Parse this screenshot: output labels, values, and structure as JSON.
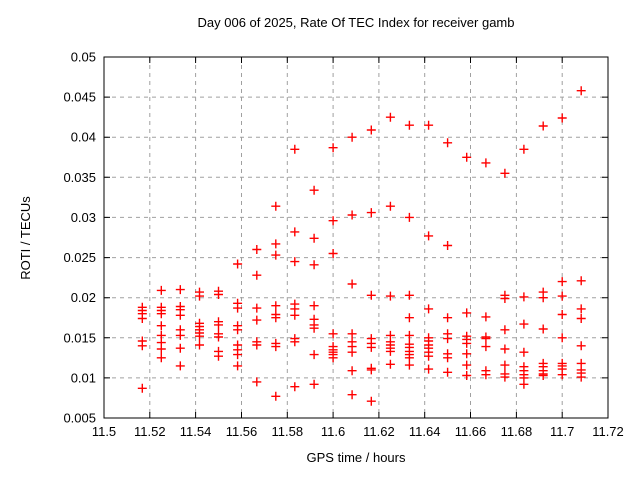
{
  "chart_data": {
    "type": "scatter",
    "title": "Day 006 of 2025, Rate Of TEC Index for receiver gamb",
    "xlabel": "GPS time / hours",
    "ylabel": "ROTI / TECUs",
    "xlim": [
      11.5,
      11.72
    ],
    "ylim": [
      0.005,
      0.05
    ],
    "xticks": [
      11.5,
      11.52,
      11.54,
      11.56,
      11.58,
      11.6,
      11.62,
      11.64,
      11.66,
      11.68,
      11.7,
      11.72
    ],
    "xtick_labels": [
      "11.5",
      "11.52",
      "11.54",
      "11.56",
      "11.58",
      "11.6",
      "11.62",
      "11.64",
      "11.66",
      "11.68",
      "11.7",
      "11.72"
    ],
    "yticks": [
      0.005,
      0.01,
      0.015,
      0.02,
      0.025,
      0.03,
      0.035,
      0.04,
      0.045,
      0.05
    ],
    "ytick_labels": [
      "0.005",
      "0.01",
      "0.015",
      "0.02",
      "0.025",
      "0.03",
      "0.035",
      "0.04",
      "0.045",
      "0.05"
    ],
    "grid": true,
    "grid_style": "dashed",
    "legend": "none",
    "colors": {
      "marker": "#ff0000",
      "grid": "#a0a0a0",
      "axis": "#000000",
      "background": "#ffffff",
      "text": "#000000"
    },
    "series": [
      {
        "name": "ROTI",
        "marker": "plus",
        "color": "#ff0000",
        "columns": [
          {
            "t": 11.5167,
            "values": [
              0.0188,
              0.0184,
              0.018,
              0.0174,
              0.0146,
              0.014,
              0.0087
            ]
          },
          {
            "t": 11.525,
            "values": [
              0.0209,
              0.0188,
              0.0184,
              0.018,
              0.0165,
              0.0153,
              0.0144,
              0.0136,
              0.0125
            ]
          },
          {
            "t": 11.5333,
            "values": [
              0.021,
              0.0189,
              0.0185,
              0.0178,
              0.016,
              0.0153,
              0.0137,
              0.0115
            ]
          },
          {
            "t": 11.5417,
            "values": [
              0.0207,
              0.0202,
              0.0168,
              0.0164,
              0.016,
              0.0156,
              0.0152,
              0.0141
            ]
          },
          {
            "t": 11.55,
            "values": [
              0.0208,
              0.0204,
              0.017,
              0.0166,
              0.0155,
              0.0151,
              0.0133,
              0.0127
            ]
          },
          {
            "t": 11.5583,
            "values": [
              0.0242,
              0.0193,
              0.0187,
              0.0165,
              0.016,
              0.0141,
              0.0135,
              0.0129,
              0.0115
            ]
          },
          {
            "t": 11.5667,
            "values": [
              0.026,
              0.0228,
              0.0187,
              0.0172,
              0.0145,
              0.0141,
              0.0095
            ]
          },
          {
            "t": 11.575,
            "values": [
              0.0314,
              0.0267,
              0.0253,
              0.019,
              0.0179,
              0.0175,
              0.0143,
              0.0139,
              0.0077
            ]
          },
          {
            "t": 11.5833,
            "values": [
              0.0385,
              0.0282,
              0.0245,
              0.0192,
              0.0186,
              0.0178,
              0.0149,
              0.0145,
              0.0089
            ]
          },
          {
            "t": 11.5917,
            "values": [
              0.0334,
              0.0274,
              0.0241,
              0.019,
              0.0173,
              0.0166,
              0.0162,
              0.0129,
              0.0092
            ]
          },
          {
            "t": 11.6,
            "values": [
              0.0387,
              0.0296,
              0.0255,
              0.0155,
              0.0139,
              0.0135,
              0.0132,
              0.0129,
              0.0125
            ]
          },
          {
            "t": 11.6083,
            "values": [
              0.04,
              0.0303,
              0.0217,
              0.0155,
              0.0145,
              0.0139,
              0.0132,
              0.0109,
              0.0079
            ]
          },
          {
            "t": 11.6167,
            "values": [
              0.0409,
              0.0306,
              0.0203,
              0.0149,
              0.0143,
              0.0138,
              0.0112,
              0.011,
              0.0071
            ]
          },
          {
            "t": 11.625,
            "values": [
              0.0425,
              0.0314,
              0.0202,
              0.0153,
              0.0145,
              0.0141,
              0.0137,
              0.0133,
              0.0117
            ]
          },
          {
            "t": 11.6333,
            "values": [
              0.0415,
              0.03,
              0.0203,
              0.0175,
              0.0153,
              0.0142,
              0.0138,
              0.0133,
              0.0129,
              0.0125,
              0.0116
            ]
          },
          {
            "t": 11.6417,
            "values": [
              0.0415,
              0.0277,
              0.0186,
              0.015,
              0.0146,
              0.0141,
              0.0137,
              0.0132,
              0.0127,
              0.0111
            ]
          },
          {
            "t": 11.65,
            "values": [
              0.0393,
              0.0265,
              0.0175,
              0.0155,
              0.0149,
              0.013,
              0.0125,
              0.0107
            ]
          },
          {
            "t": 11.6583,
            "values": [
              0.0375,
              0.0181,
              0.0152,
              0.0148,
              0.0143,
              0.013,
              0.0116,
              0.0103
            ]
          },
          {
            "t": 11.6667,
            "values": [
              0.0368,
              0.0176,
              0.0151,
              0.0149,
              0.0139,
              0.0109,
              0.0104
            ]
          },
          {
            "t": 11.675,
            "values": [
              0.0355,
              0.0203,
              0.0199,
              0.016,
              0.0136,
              0.0116,
              0.0105,
              0.0101
            ]
          },
          {
            "t": 11.6833,
            "values": [
              0.0385,
              0.0201,
              0.0167,
              0.0132,
              0.0114,
              0.0109,
              0.0104,
              0.01,
              0.0092
            ]
          },
          {
            "t": 11.6917,
            "values": [
              0.0414,
              0.0207,
              0.02,
              0.0161,
              0.0118,
              0.0114,
              0.0109,
              0.0105,
              0.0103
            ]
          },
          {
            "t": 11.7,
            "values": [
              0.0424,
              0.022,
              0.0202,
              0.0179,
              0.015,
              0.0118,
              0.0115,
              0.0111,
              0.0104
            ]
          },
          {
            "t": 11.7083,
            "values": [
              0.0458,
              0.0221,
              0.0186,
              0.0174,
              0.014,
              0.0118,
              0.011,
              0.0106,
              0.0101
            ]
          }
        ]
      }
    ]
  }
}
